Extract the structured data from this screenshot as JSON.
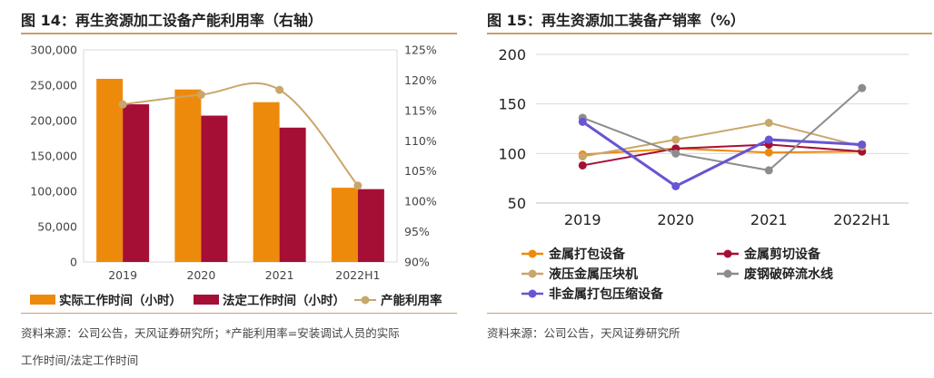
{
  "left": {
    "title": "图 14：再生资源加工设备产能利用率（右轴）",
    "source_line1": "资料来源：公司公告，天风证券研究所；*产能利用率=安装调试人员的实际",
    "source_line2": "工作时间/法定工作时间",
    "chart_data": {
      "type": "bar",
      "categories": [
        "2019",
        "2020",
        "2021",
        "2022H1"
      ],
      "series": [
        {
          "name": "实际工作时间（小时）",
          "type": "bar",
          "axis": "left",
          "color": "#ee8a0b",
          "values": [
            259000,
            244000,
            226000,
            105000
          ]
        },
        {
          "name": "法定工作时间（小时）",
          "type": "bar",
          "axis": "left",
          "color": "#a50f36",
          "values": [
            223000,
            207000,
            190000,
            103000
          ]
        },
        {
          "name": "产能利用率",
          "type": "line",
          "axis": "right",
          "color": "#c9a66b",
          "values": [
            116.0,
            117.6,
            118.4,
            102.6
          ]
        }
      ],
      "ylim_left": [
        0,
        300000
      ],
      "yticks_left": [
        "0",
        "50,000",
        "100,000",
        "150,000",
        "200,000",
        "250,000",
        "300,000"
      ],
      "ylim_right": [
        90,
        125
      ],
      "yticks_right": [
        "90%",
        "95%",
        "100%",
        "105%",
        "110%",
        "115%",
        "120%",
        "125%"
      ],
      "legend": "bottom"
    }
  },
  "right": {
    "title": "图 15：再生资源加工装备产销率（%）",
    "source": "资料来源：公司公告，天风证券研究所",
    "chart_data": {
      "type": "line",
      "categories": [
        "2019",
        "2020",
        "2021",
        "2022H1"
      ],
      "series": [
        {
          "name": "金属打包设备",
          "color": "#ee8a0b",
          "values": [
            99,
            105,
            101,
            102
          ]
        },
        {
          "name": "金属剪切设备",
          "color": "#a50f36",
          "values": [
            88,
            105,
            109,
            102
          ]
        },
        {
          "name": "液压金属压块机",
          "color": "#c9a66b",
          "values": [
            97,
            114,
            131,
            107
          ]
        },
        {
          "name": "废钢破碎流水线",
          "color": "#8c8c8c",
          "values": [
            136,
            100,
            83,
            166
          ]
        },
        {
          "name": "非金属打包压缩设备",
          "color": "#6655d4",
          "values": [
            132,
            67,
            114,
            109
          ]
        }
      ],
      "ylim": [
        50,
        200
      ],
      "yticks": [
        "50",
        "100",
        "150",
        "200"
      ],
      "legend": "bottom"
    }
  }
}
